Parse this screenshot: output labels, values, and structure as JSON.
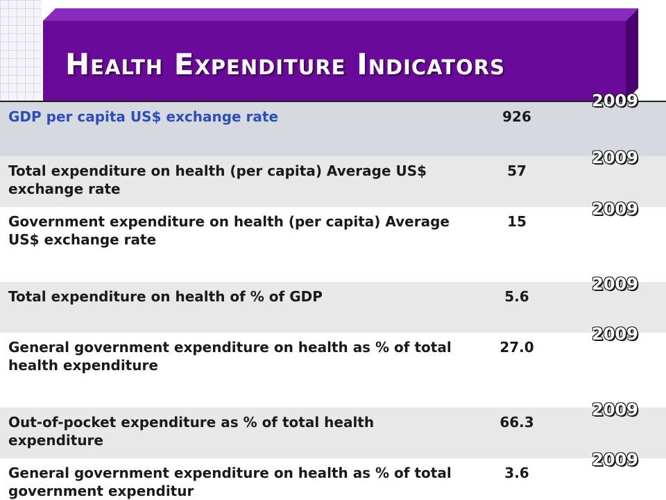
{
  "title": "Health Expenditure Indicators",
  "colors": {
    "banner": "#6a0a9a",
    "banner_dark": "#4a0470",
    "header_row_text": "#2a4fbd"
  },
  "rows": [
    {
      "label": "GDP per capita US$ exchange rate",
      "value": "926",
      "year": "2009"
    },
    {
      "label": "Total expenditure on health (per capita) Average US$ exchange rate",
      "value": "57",
      "year": "2009"
    },
    {
      "label": "Government expenditure on health (per capita) Average US$ exchange rate",
      "value": "15",
      "year": "2009"
    },
    {
      "label": "Total expenditure on health of % of GDP",
      "value": "5.6",
      "year": "2009"
    },
    {
      "label": "General government expenditure on health as % of total health expenditure",
      "value": "27.0",
      "year": "2009"
    },
    {
      "label": "Out-of-pocket expenditure as % of total health expenditure",
      "value": "66.3",
      "year": "2009"
    },
    {
      "label": "General government expenditure on health as % of total government expenditur",
      "value": "3.6",
      "year": "2009"
    }
  ]
}
